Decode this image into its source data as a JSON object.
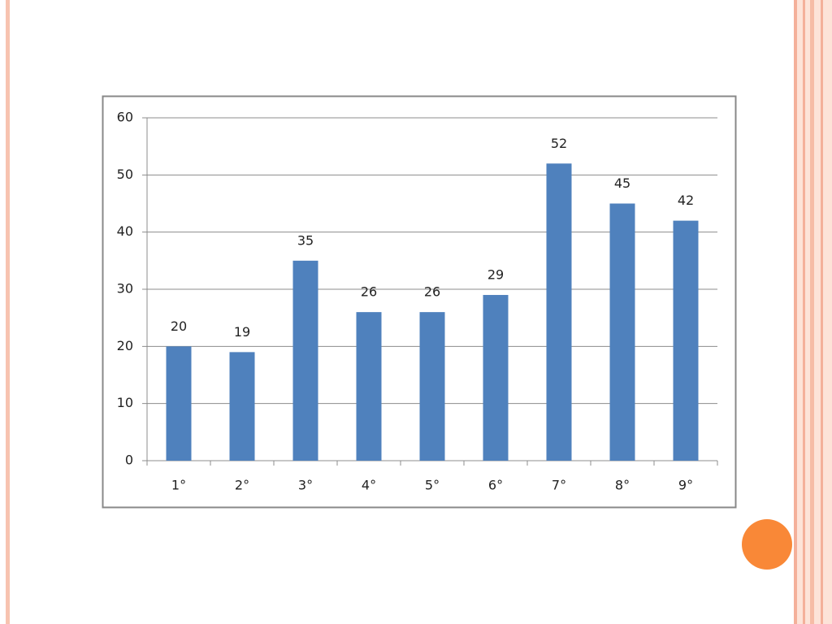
{
  "chart_data": {
    "type": "bar",
    "categories": [
      "1°",
      "2°",
      "3°",
      "4°",
      "5°",
      "6°",
      "7°",
      "8°",
      "9°"
    ],
    "values": [
      20,
      19,
      35,
      26,
      26,
      29,
      52,
      45,
      42
    ],
    "color": "#4f81bd",
    "ylim": [
      0,
      60
    ],
    "yticks": [
      0,
      10,
      20,
      30,
      40,
      50,
      60
    ],
    "grid": true,
    "data_labels": true
  }
}
